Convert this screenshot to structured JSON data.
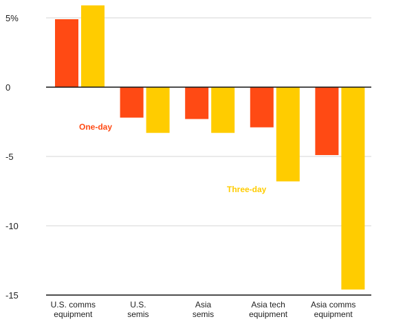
{
  "chart_data": {
    "type": "bar",
    "title": "",
    "xlabel": "",
    "ylabel": "",
    "categories": [
      [
        "U.S. comms",
        "equipment"
      ],
      [
        "U.S.",
        "semis"
      ],
      [
        "Asia",
        "semis"
      ],
      [
        "Asia tech",
        "equipment"
      ],
      [
        "Asia comms",
        "equipment"
      ]
    ],
    "series": [
      {
        "name": "One-day",
        "color": "#ff4a14",
        "values": [
          4.9,
          -2.2,
          -2.3,
          -2.9,
          -4.9
        ]
      },
      {
        "name": "Three-day",
        "color": "#ffcc00",
        "values": [
          5.9,
          -3.3,
          -3.3,
          -6.8,
          -14.6
        ]
      }
    ],
    "ylim": [
      -15,
      6
    ],
    "yticks": [
      {
        "value": 5,
        "label": "5%"
      },
      {
        "value": 0,
        "label": "0"
      },
      {
        "value": -5,
        "label": "-5"
      },
      {
        "value": -10,
        "label": "-10"
      },
      {
        "value": -15,
        "label": "-15"
      }
    ],
    "grid": true,
    "legend": "inline"
  }
}
